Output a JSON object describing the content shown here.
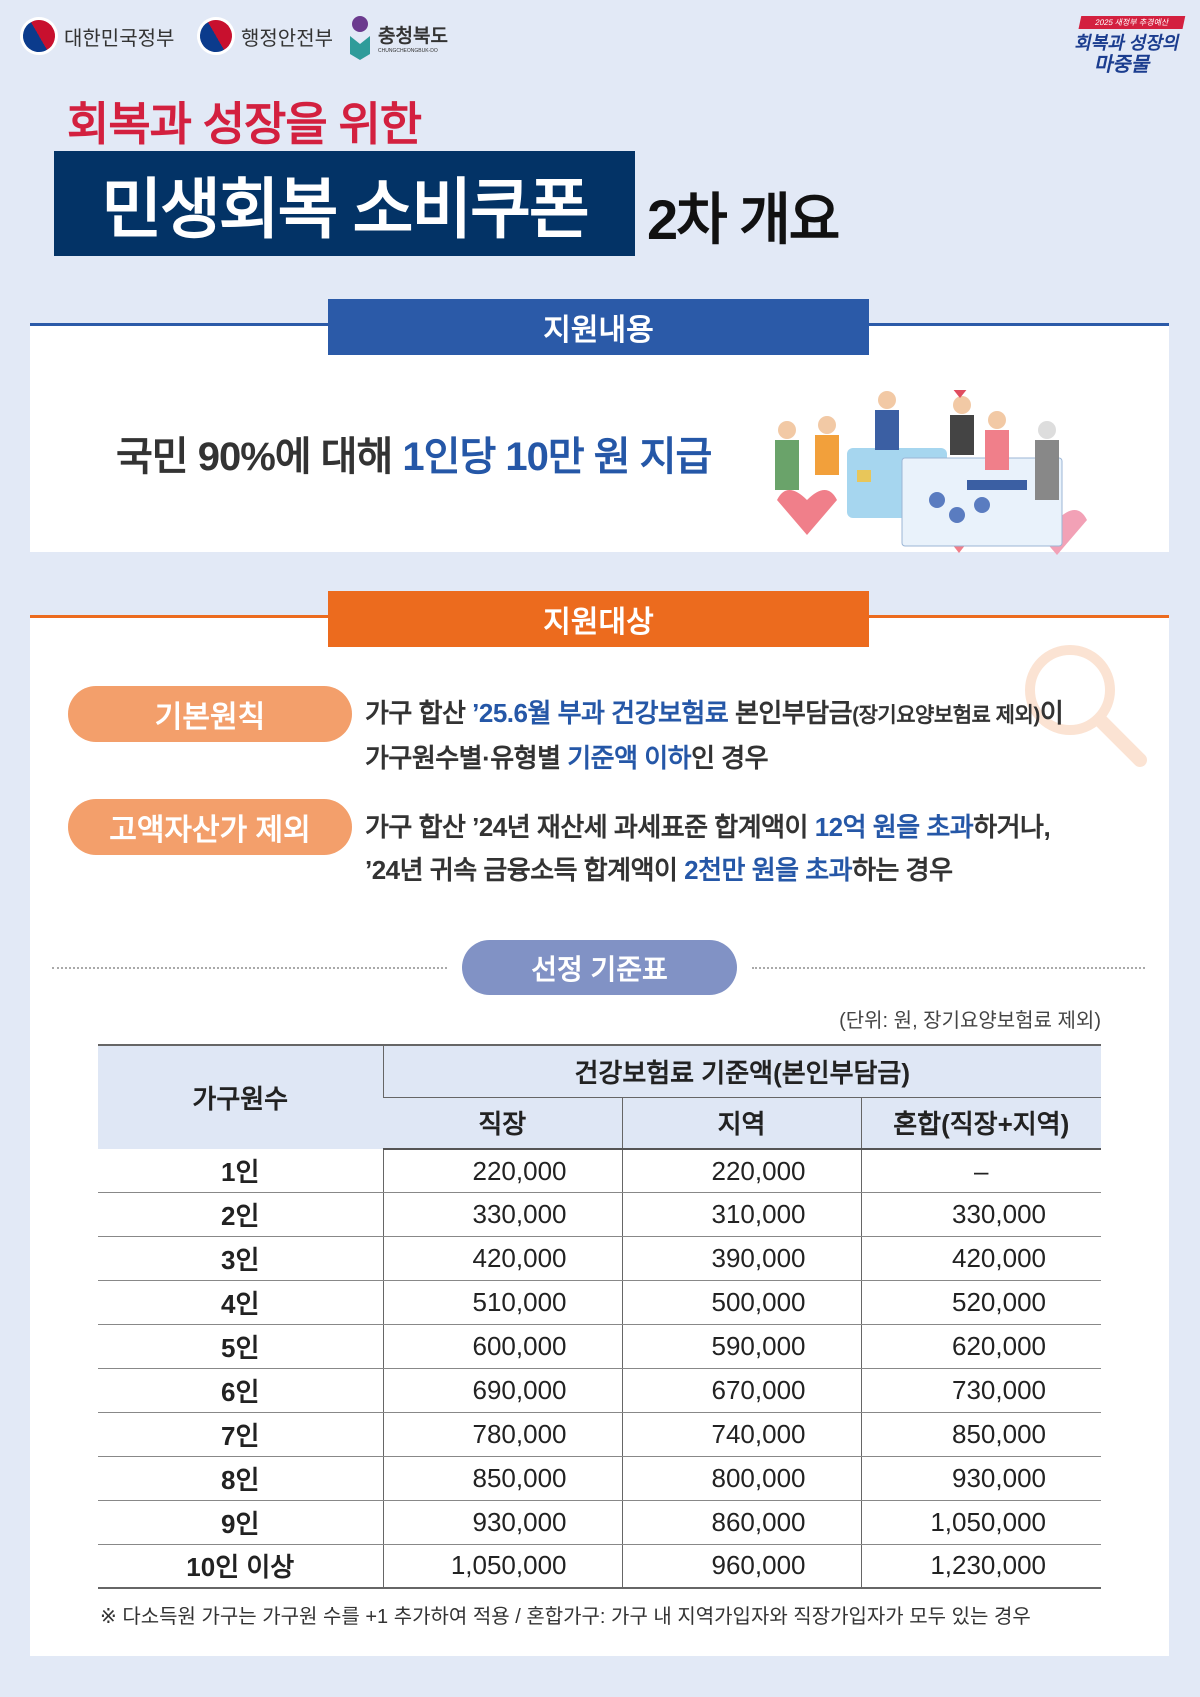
{
  "header": {
    "logos": [
      "대한민국정부",
      "행정안전부",
      "충청북도"
    ],
    "logo_sub": "CHUNGCHEONGBUK-DO",
    "badge": {
      "top": "2025 새정부 추경예산",
      "line1": "회복과 성장의",
      "line2": "마중물"
    }
  },
  "subtitle": "회복과 성장을 위한",
  "title": "민생회복 소비쿠폰",
  "title_suffix": "2차 개요",
  "section1": {
    "heading": "지원내용",
    "text_plain": "국민 90%에 대해 ",
    "text_blue": "1인당 10만 원 지급",
    "illustration": "people-with-cards-and-hearts"
  },
  "section2": {
    "heading": "지원대상",
    "criteria": [
      {
        "label": "기본원칙",
        "line1": [
          {
            "t": "가구 합산 "
          },
          {
            "t": "’25.6월 부과 건강보험료",
            "b": true
          },
          {
            "t": " 본인부담금"
          },
          {
            "t": "(장기요양보험료 제외)",
            "s": true
          },
          {
            "t": "이"
          }
        ],
        "line2": [
          {
            "t": "가구원수별·유형별 "
          },
          {
            "t": "기준액 이하",
            "b": true
          },
          {
            "t": "인 경우"
          }
        ]
      },
      {
        "label": "고액자산가 제외",
        "line1": [
          {
            "t": "가구 합산 ’24년 재산세 과세표준 합계액이 "
          },
          {
            "t": "12억 원을 초과",
            "b": true
          },
          {
            "t": "하거나,"
          }
        ],
        "line2": [
          {
            "t": "’24년 귀속 금융소득 합계액이 "
          },
          {
            "t": "2천만 원을 초과",
            "b": true
          },
          {
            "t": "하는 경우"
          }
        ]
      }
    ]
  },
  "table": {
    "title": "선정 기준표",
    "unit": "(단위: 원, 장기요양보험료 제외)",
    "col_household": "가구원수",
    "col_group": "건강보험료 기준액(본인부담금)",
    "cols": [
      "직장",
      "지역",
      "혼합(직장+지역)"
    ],
    "rows": [
      [
        "1인",
        "220,000",
        "220,000",
        "–"
      ],
      [
        "2인",
        "330,000",
        "310,000",
        "330,000"
      ],
      [
        "3인",
        "420,000",
        "390,000",
        "420,000"
      ],
      [
        "4인",
        "510,000",
        "500,000",
        "520,000"
      ],
      [
        "5인",
        "600,000",
        "590,000",
        "620,000"
      ],
      [
        "6인",
        "690,000",
        "670,000",
        "730,000"
      ],
      [
        "7인",
        "780,000",
        "740,000",
        "850,000"
      ],
      [
        "8인",
        "850,000",
        "800,000",
        "930,000"
      ],
      [
        "9인",
        "930,000",
        "860,000",
        "1,050,000"
      ],
      [
        "10인 이상",
        "1,050,000",
        "960,000",
        "1,230,000"
      ]
    ]
  },
  "footnote": "※ 다소득원 가구는 가구원 수를 +1 추가하여 적용 / 혼합가구: 가구 내 지역가입자와 직장가입자가 모두 있는 경우",
  "colors": {
    "navy": "#033366",
    "red": "#d3203f",
    "blue": "#2557a7",
    "orange": "#ec6b1e",
    "pill": "#f39f6b",
    "table_pill": "#8192c5"
  }
}
